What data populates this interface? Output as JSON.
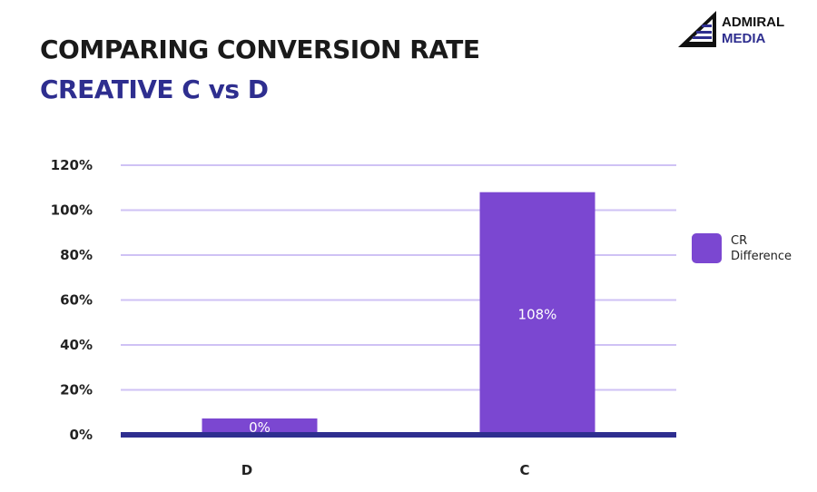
{
  "title": "COMPARING CONVERSION RATE",
  "subtitle": "CREATIVE C vs D",
  "logo": {
    "line1": "ADMIRAL",
    "line2": "MEDIA"
  },
  "colors": {
    "bar": "#7b47d1",
    "grid": "#cfc2f5",
    "baseline": "#2e2e8f",
    "title": "#1a1a1a",
    "subtitle": "#2e2e8f"
  },
  "chart_data": {
    "type": "bar",
    "categories": [
      "D",
      "C"
    ],
    "series": [
      {
        "name": "CR Difference",
        "values": [
          0,
          108
        ],
        "labels": [
          "0%",
          "108%"
        ]
      }
    ],
    "yticks": [
      "0%",
      "20%",
      "40%",
      "60%",
      "80%",
      "100%",
      "120%"
    ],
    "ylim": [
      0,
      120
    ],
    "grid": true,
    "legend": "right"
  }
}
